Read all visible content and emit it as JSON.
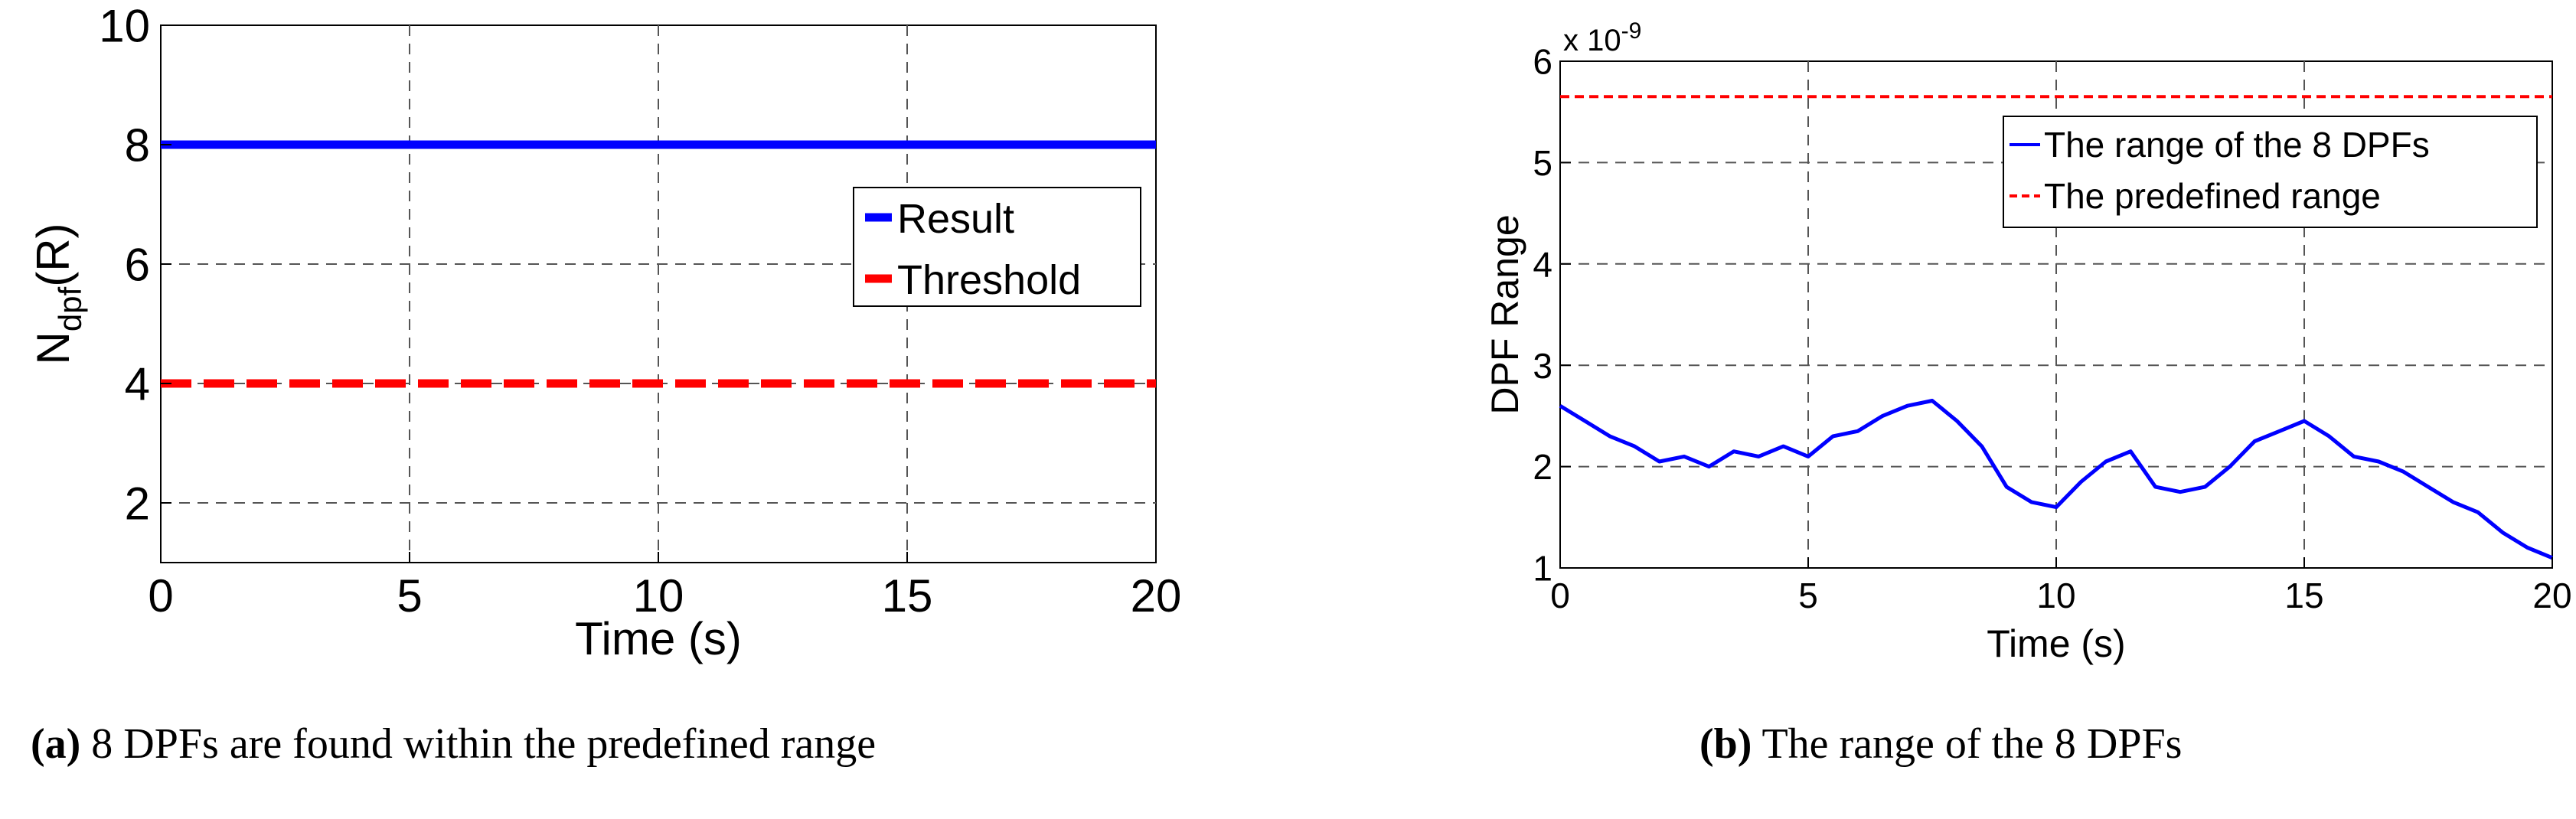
{
  "chart_data": [
    {
      "id": "a",
      "type": "line",
      "ylabel_main": "N",
      "ylabel_sub": "dpf",
      "ylabel_tail": "(R)",
      "xlabel": "Time (s)",
      "xlim": [
        0,
        20
      ],
      "ylim": [
        1,
        10
      ],
      "xticks": [
        0,
        5,
        10,
        15,
        20
      ],
      "yticks": [
        2,
        4,
        6,
        8,
        10
      ],
      "grid": true,
      "legend_position": "right",
      "series": [
        {
          "name": "Result",
          "color": "#0000ff",
          "style": "solid",
          "x": [
            0,
            20
          ],
          "y": [
            8,
            8
          ]
        },
        {
          "name": "Threshold",
          "color": "#ff0000",
          "style": "dashed",
          "x": [
            0,
            20
          ],
          "y": [
            4,
            4
          ]
        }
      ]
    },
    {
      "id": "b",
      "type": "line",
      "ylabel": "DPF Range",
      "xlabel": "Time (s)",
      "exponent_label": "x 10",
      "exponent_power": "-9",
      "xlim": [
        0,
        20
      ],
      "ylim": [
        1,
        6
      ],
      "xticks": [
        0,
        5,
        10,
        15,
        20
      ],
      "yticks": [
        1,
        2,
        3,
        4,
        5,
        6
      ],
      "grid": true,
      "legend_position": "top-right",
      "series": [
        {
          "name": "The range of the 8 DPFs",
          "color": "#0000ff",
          "style": "solid",
          "x": [
            0,
            0.5,
            1,
            1.5,
            2,
            2.5,
            3,
            3.5,
            4,
            4.5,
            5,
            5.5,
            6,
            6.5,
            7,
            7.5,
            8,
            8.5,
            9,
            9.5,
            10,
            10.5,
            11,
            11.5,
            12,
            12.5,
            13,
            13.5,
            14,
            14.5,
            15,
            15.5,
            16,
            16.5,
            17,
            17.5,
            18,
            18.5,
            19,
            19.5,
            20
          ],
          "y": [
            2.6,
            2.45,
            2.3,
            2.2,
            2.05,
            2.1,
            2.0,
            2.15,
            2.1,
            2.2,
            2.1,
            2.3,
            2.35,
            2.5,
            2.6,
            2.65,
            2.45,
            2.2,
            1.8,
            1.65,
            1.6,
            1.85,
            2.05,
            2.15,
            1.8,
            1.75,
            1.8,
            2.0,
            2.25,
            2.35,
            2.45,
            2.3,
            2.1,
            2.05,
            1.95,
            1.8,
            1.65,
            1.55,
            1.35,
            1.2,
            1.1
          ]
        },
        {
          "name": "The predefined range",
          "color": "#ff0000",
          "style": "dashed",
          "x": [
            0,
            20
          ],
          "y": [
            5.65,
            5.65
          ]
        }
      ]
    }
  ],
  "captions": {
    "a_label": "(a)",
    "a_text": " 8 DPFs are found within the predefined range",
    "b_label": "(b)",
    "b_text": " The range of the 8 DPFs"
  }
}
